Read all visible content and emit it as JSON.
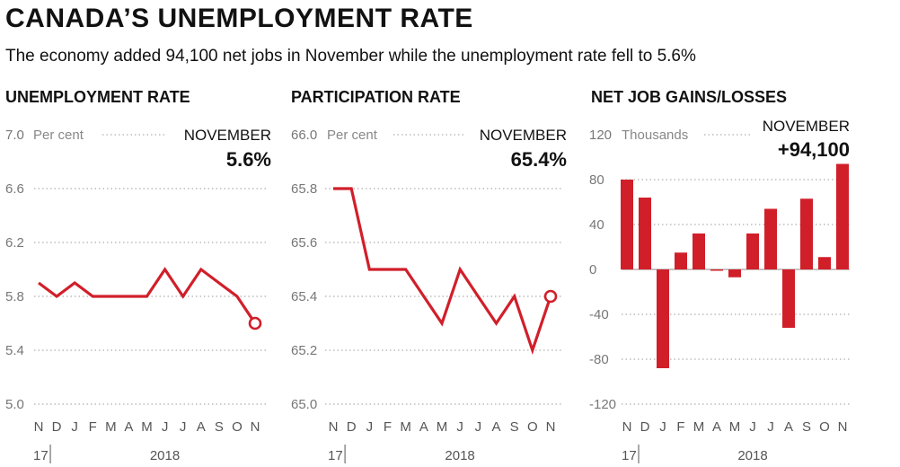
{
  "header": {
    "title": "CANADA’S UNEMPLOYMENT RATE",
    "subtitle": "The economy added 94,100 net jobs in November while the unemployment rate fell to 5.6%"
  },
  "colors": {
    "accent": "#d11f2a",
    "grid": "#9a9a9a",
    "text": "#111111",
    "muted": "#777777"
  },
  "chart_data": [
    {
      "type": "line",
      "title": "UNEMPLOYMENT RATE",
      "unit": "Per cent",
      "note_label": "NOVEMBER",
      "note_value": "5.6%",
      "categories": [
        "N",
        "D",
        "J",
        "F",
        "M",
        "A",
        "M",
        "J",
        "J",
        "A",
        "S",
        "O",
        "N"
      ],
      "year_labels": [
        "17",
        "2018"
      ],
      "values": [
        5.9,
        5.8,
        5.9,
        5.8,
        5.8,
        5.8,
        5.8,
        6.0,
        5.8,
        6.0,
        5.9,
        5.8,
        5.6
      ],
      "ylim": [
        5.0,
        7.0
      ],
      "yticks": [
        "7.0",
        "6.6",
        "6.2",
        "5.8",
        "5.4",
        "5.0"
      ],
      "grid": true
    },
    {
      "type": "line",
      "title": "PARTICIPATION RATE",
      "unit": "Per cent",
      "note_label": "NOVEMBER",
      "note_value": "65.4%",
      "categories": [
        "N",
        "D",
        "J",
        "F",
        "M",
        "A",
        "M",
        "J",
        "J",
        "A",
        "S",
        "O",
        "N"
      ],
      "year_labels": [
        "17",
        "2018"
      ],
      "values": [
        65.8,
        65.8,
        65.5,
        65.5,
        65.5,
        65.4,
        65.3,
        65.5,
        65.4,
        65.3,
        65.4,
        65.2,
        65.4
      ],
      "ylim": [
        65.0,
        66.0
      ],
      "yticks": [
        "66.0",
        "65.8",
        "65.6",
        "65.4",
        "65.2",
        "65.0"
      ],
      "grid": true
    },
    {
      "type": "bar",
      "title": "NET JOB GAINS/LOSSES",
      "unit": "Thousands",
      "note_label": "NOVEMBER",
      "note_value": "+94,100",
      "categories": [
        "N",
        "D",
        "J",
        "F",
        "M",
        "A",
        "M",
        "J",
        "J",
        "A",
        "S",
        "O",
        "N"
      ],
      "year_labels": [
        "17",
        "2018"
      ],
      "values": [
        80,
        64,
        -88,
        15,
        32,
        -1,
        -7,
        32,
        54,
        -52,
        63,
        11,
        94
      ],
      "ylim": [
        -120,
        120
      ],
      "yticks": [
        "120",
        "80",
        "40",
        "0",
        "-40",
        "-80",
        "-120"
      ],
      "grid": true
    }
  ]
}
